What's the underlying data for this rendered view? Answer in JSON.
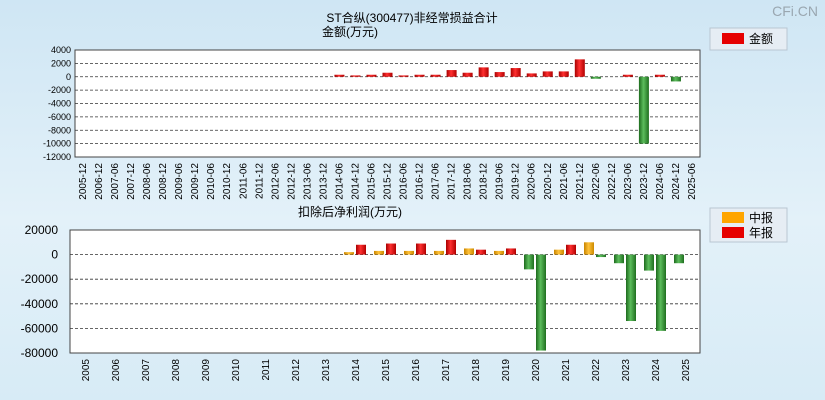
{
  "watermark": "CFi.CN",
  "chart_data": [
    {
      "type": "bar",
      "title": "ST合纵(300477)非经常损益合计",
      "ylabel": "金额(万元)",
      "legend": [
        "金额"
      ],
      "legend_placement": "top-right",
      "grid": true,
      "ylim": [
        -12000,
        4000
      ],
      "yticks": [
        4000,
        2000,
        0,
        -2000,
        -4000,
        -6000,
        -8000,
        -10000,
        -12000
      ],
      "categories": [
        "2005-12",
        "2006-12",
        "2007-06",
        "2007-12",
        "2008-06",
        "2008-12",
        "2009-06",
        "2009-12",
        "2010-06",
        "2010-12",
        "2011-06",
        "2011-12",
        "2012-06",
        "2012-12",
        "2013-06",
        "2013-12",
        "2014-06",
        "2014-12",
        "2015-06",
        "2015-12",
        "2016-06",
        "2016-12",
        "2017-06",
        "2017-12",
        "2018-06",
        "2018-12",
        "2019-06",
        "2019-12",
        "2020-06",
        "2020-12",
        "2021-06",
        "2021-12",
        "2022-06",
        "2022-12",
        "2023-06",
        "2023-12",
        "2024-06",
        "2024-12",
        "2025-06"
      ],
      "series": [
        {
          "name": "金额",
          "values": [
            null,
            null,
            null,
            null,
            null,
            null,
            null,
            null,
            null,
            null,
            null,
            null,
            null,
            null,
            null,
            null,
            300,
            200,
            300,
            600,
            200,
            300,
            300,
            1000,
            600,
            1400,
            700,
            1300,
            500,
            800,
            800,
            2600,
            -300,
            0,
            300,
            -10000,
            300,
            -700,
            null
          ]
        }
      ]
    },
    {
      "type": "bar",
      "title": "扣除后净利润(万元)",
      "legend": [
        "中报",
        "年报"
      ],
      "legend_placement": "top-right",
      "grid": true,
      "ylim": [
        -80000,
        20000
      ],
      "yticks": [
        20000,
        0,
        -20000,
        -40000,
        -60000,
        -80000
      ],
      "categories": [
        "2005",
        "2006",
        "2007",
        "2008",
        "2009",
        "2010",
        "2011",
        "2012",
        "2013",
        "2014",
        "2015",
        "2016",
        "2017",
        "2018",
        "2019",
        "2020",
        "2021",
        "2022",
        "2023",
        "2024",
        "2025"
      ],
      "series": [
        {
          "name": "中报",
          "values": [
            null,
            null,
            null,
            null,
            null,
            null,
            null,
            null,
            null,
            2000,
            3000,
            3000,
            3000,
            5000,
            3000,
            -12000,
            4000,
            10000,
            -7000,
            -13000,
            -7000
          ]
        },
        {
          "name": "年报",
          "values": [
            null,
            null,
            null,
            null,
            null,
            null,
            null,
            null,
            null,
            8000,
            9000,
            9000,
            12000,
            4000,
            5000,
            -78000,
            8000,
            -2000,
            -54000,
            -62000,
            null
          ]
        }
      ]
    }
  ]
}
